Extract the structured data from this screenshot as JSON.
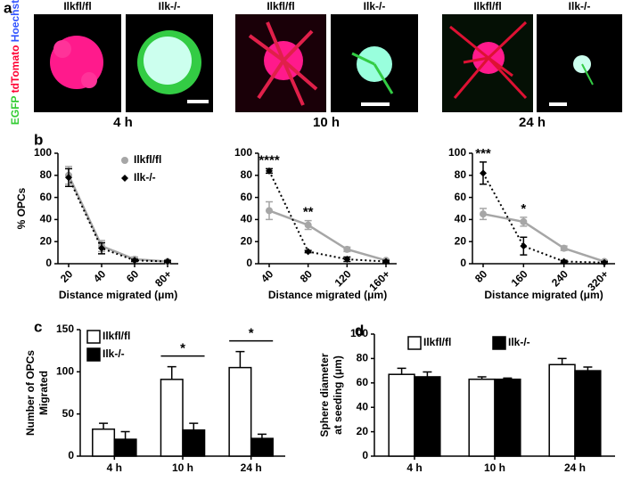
{
  "panel_labels": [
    "a",
    "b",
    "c",
    "d"
  ],
  "panel_a": {
    "stain_labels": [
      "EGFP",
      "tdTomato",
      "Hoechst"
    ],
    "groups": [
      {
        "images": [
          "Ilkfl/fl",
          "Ilk-/-"
        ],
        "time": "4 h"
      },
      {
        "images": [
          "Ilkfl/fl",
          "Ilk-/-"
        ],
        "time": "10 h"
      },
      {
        "images": [
          "Ilkfl/fl",
          "Ilk-/-"
        ],
        "time": "24 h"
      }
    ]
  },
  "chart_data": [
    {
      "type": "line",
      "ylabel": [
        "% OPCs"
      ],
      "xlabel": "Distance migrated (μm)",
      "categories": [
        "20",
        "40",
        "60",
        "80+"
      ],
      "ylim": [
        0,
        100
      ],
      "yticks": [
        0,
        20,
        40,
        60,
        80,
        100
      ],
      "legend": "upper right",
      "series": [
        {
          "name": "Ilkfl/fl",
          "color": "#a6a6a6",
          "line_style": "solid",
          "marker": "circle",
          "values": [
            80,
            16,
            4,
            2
          ],
          "errors": [
            8,
            5,
            2,
            1
          ]
        },
        {
          "name": "Ilk-/-",
          "color": "#000000",
          "line_style": "dotted",
          "marker": "diamond",
          "values": [
            78,
            14,
            3,
            2
          ],
          "errors": [
            8,
            5,
            1,
            1
          ]
        }
      ],
      "annotations": []
    },
    {
      "type": "line",
      "ylabel": [],
      "xlabel": "Distance migrated (μm)",
      "categories": [
        "40",
        "80",
        "120",
        "160+"
      ],
      "ylim": [
        0,
        100
      ],
      "yticks": [
        0,
        20,
        40,
        60,
        80,
        100
      ],
      "series": [
        {
          "name": "Ilkfl/fl",
          "color": "#a6a6a6",
          "line_style": "solid",
          "marker": "circle",
          "values": [
            48,
            35,
            13,
            3
          ],
          "errors": [
            8,
            4,
            2,
            1
          ]
        },
        {
          "name": "Ilk-/-",
          "color": "#000000",
          "line_style": "dotted",
          "marker": "diamond",
          "values": [
            84,
            11,
            4,
            2
          ],
          "errors": [
            2,
            1,
            2,
            1
          ]
        }
      ],
      "annotations": [
        {
          "text": "****",
          "x": "40"
        },
        {
          "text": "**",
          "x": "80"
        }
      ]
    },
    {
      "type": "line",
      "ylabel": [],
      "xlabel": "Distance migrated (μm)",
      "categories": [
        "80",
        "160",
        "240",
        "320+"
      ],
      "ylim": [
        0,
        100
      ],
      "yticks": [
        0,
        20,
        40,
        60,
        80,
        100
      ],
      "series": [
        {
          "name": "Ilkfl/fl",
          "color": "#a6a6a6",
          "line_style": "solid",
          "marker": "circle",
          "values": [
            45,
            38,
            14,
            2
          ],
          "errors": [
            5,
            4,
            2,
            1
          ]
        },
        {
          "name": "Ilk-/-",
          "color": "#000000",
          "line_style": "dotted",
          "marker": "diamond",
          "values": [
            82,
            16,
            2,
            1
          ],
          "errors": [
            10,
            8,
            1,
            1
          ]
        }
      ],
      "annotations": [
        {
          "text": "***",
          "x": "80"
        },
        {
          "text": "*",
          "x": "160"
        }
      ]
    },
    {
      "type": "bar",
      "ylabel": [
        "Number of OPCs",
        "Migrated"
      ],
      "categories": [
        "4 h",
        "10 h",
        "24 h"
      ],
      "ylim": [
        0,
        150
      ],
      "yticks": [
        0,
        50,
        100,
        150
      ],
      "legend": "upper left",
      "series": [
        {
          "name": "Ilkfl/fl",
          "color": "#ffffff",
          "values": [
            32,
            91,
            105
          ],
          "errors": [
            7,
            15,
            19
          ]
        },
        {
          "name": "Ilk-/-",
          "color": "#000000",
          "values": [
            20,
            31,
            21
          ],
          "errors": [
            9,
            8,
            5
          ]
        }
      ],
      "annotations": [
        {
          "text": "*",
          "x": "10 h"
        },
        {
          "text": "*",
          "x": "24 h"
        }
      ]
    },
    {
      "type": "bar",
      "ylabel": [
        "Sphere diameter",
        "at seeding (μm)"
      ],
      "categories": [
        "4 h",
        "10 h",
        "24 h"
      ],
      "ylim": [
        0,
        100
      ],
      "yticks": [
        0,
        20,
        40,
        60,
        80,
        100
      ],
      "legend": "upper center",
      "series": [
        {
          "name": "Ilkfl/fl",
          "color": "#ffffff",
          "values": [
            67,
            63,
            75
          ],
          "errors": [
            5,
            2,
            5
          ]
        },
        {
          "name": "Ilk-/-",
          "color": "#000000",
          "values": [
            65,
            63,
            70
          ],
          "errors": [
            4,
            1,
            3
          ]
        }
      ],
      "annotations": []
    }
  ]
}
